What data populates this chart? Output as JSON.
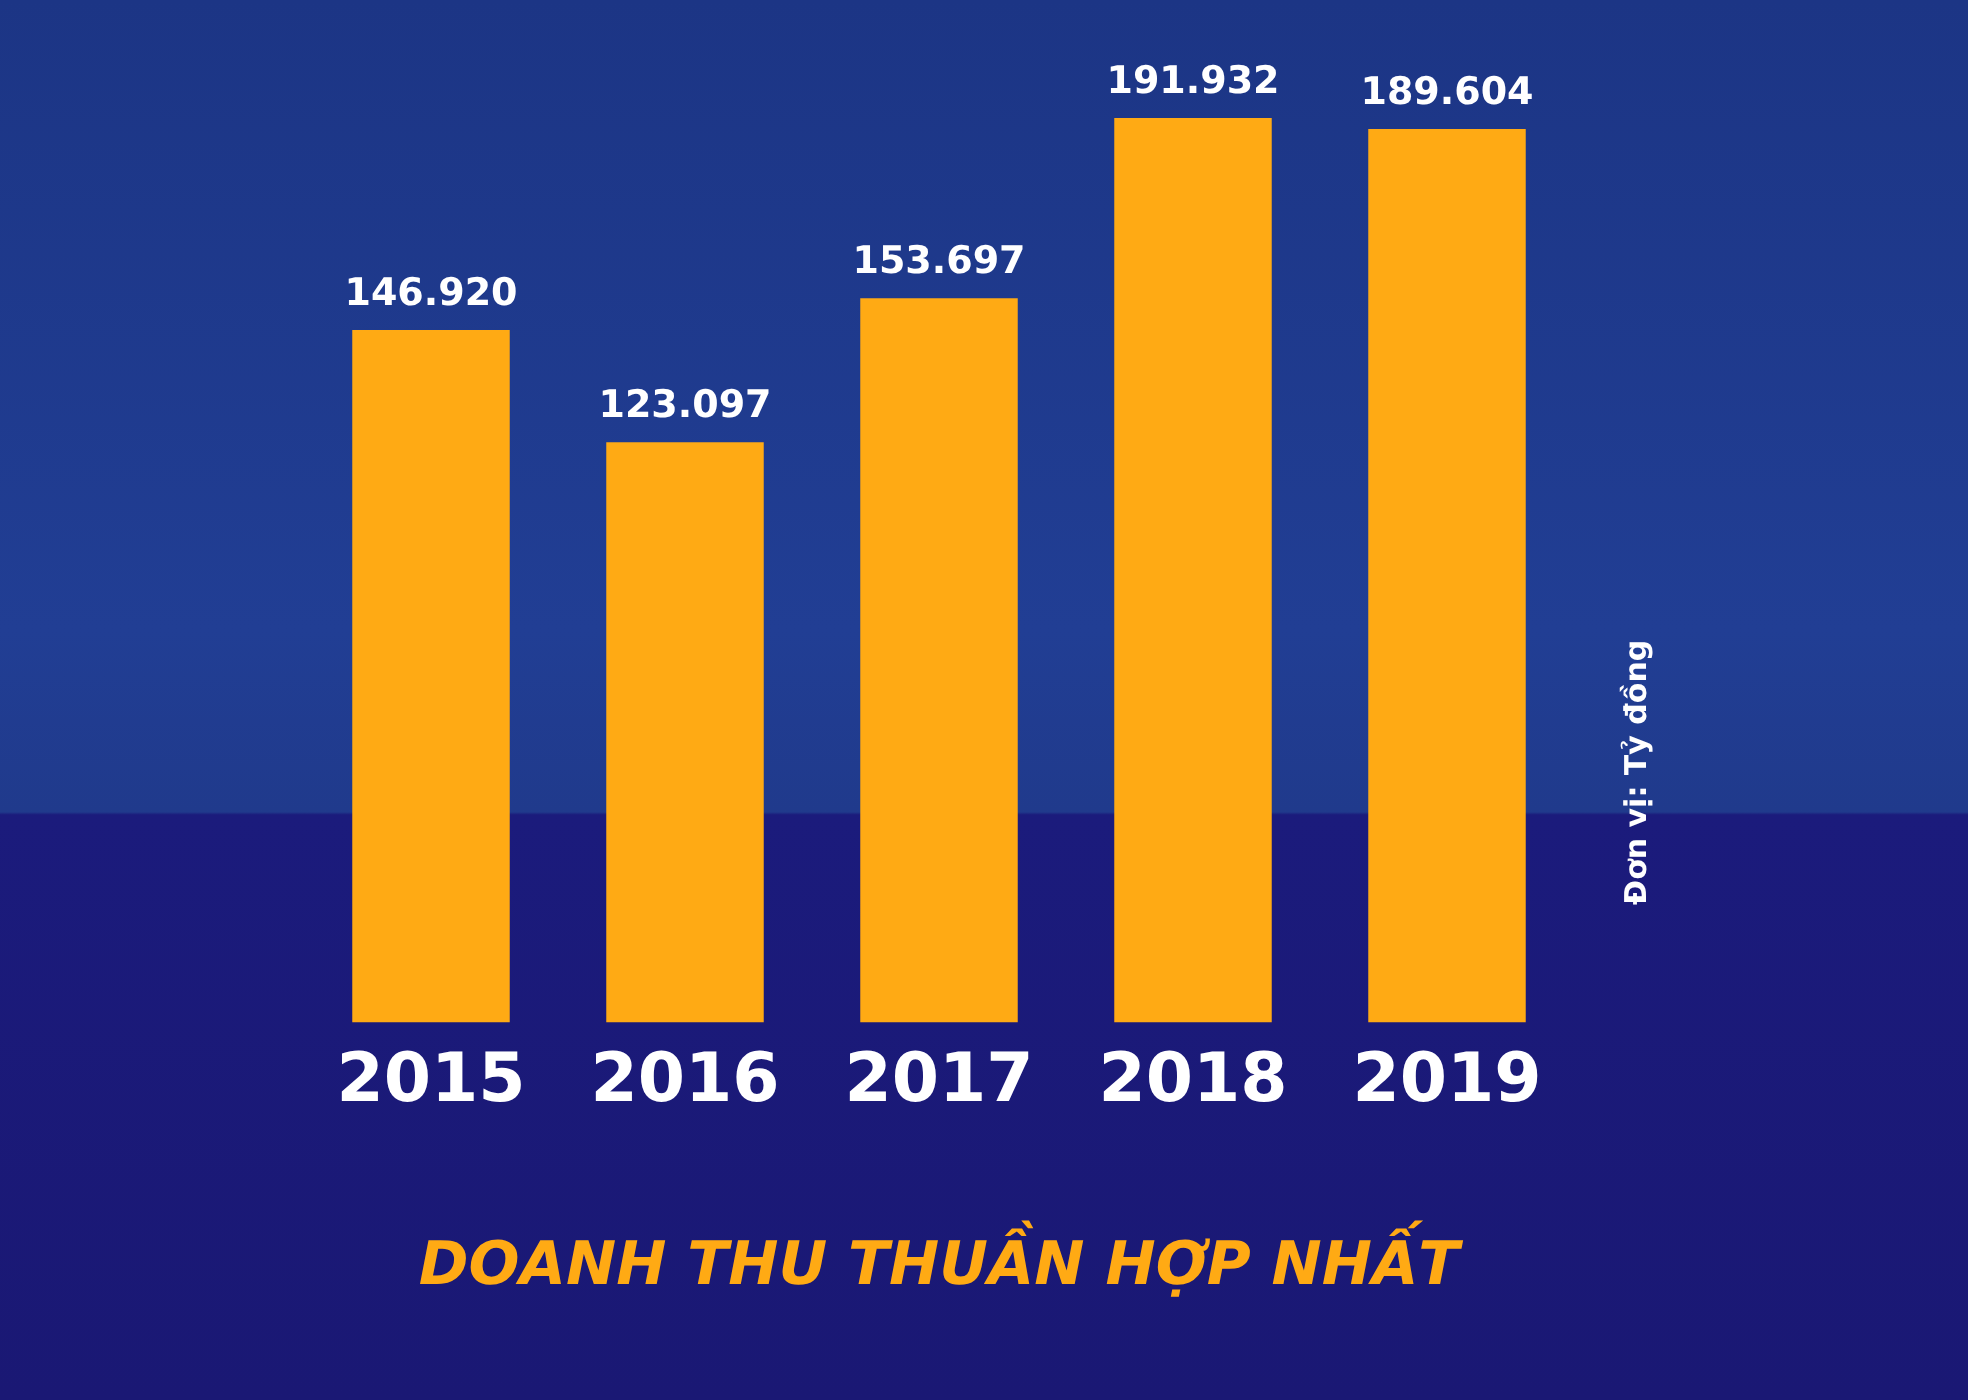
{
  "chart_data": {
    "type": "bar",
    "title": "DOANH THU THUẦN HỢP NHẤT",
    "categories": [
      "2015",
      "2016",
      "2017",
      "2018",
      "2019"
    ],
    "values": [
      146920,
      123097,
      153697,
      191932,
      189604
    ],
    "value_labels": [
      "146.920",
      "123.097",
      "153.697",
      "191.932",
      "189.604"
    ],
    "color": "#ffaa14",
    "annotations": [
      "Đơn vị: Tỷ đồng"
    ]
  }
}
